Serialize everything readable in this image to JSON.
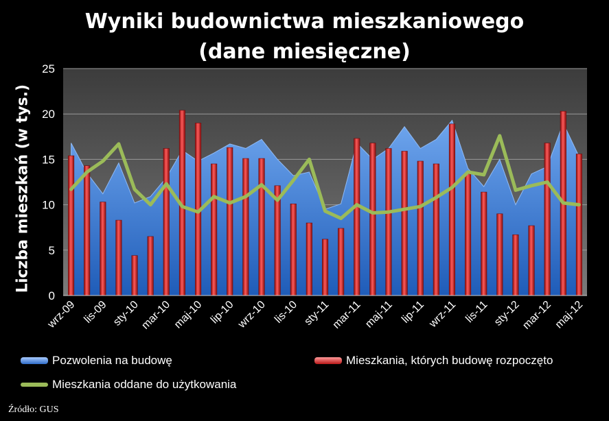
{
  "chart_data": {
    "type": "bar",
    "title_line1": "Wyniki budownictwa mieszkaniowego",
    "title_line2": "(dane miesięczne)",
    "ylabel": "Liczba mieszkań (w tys.)",
    "xlabel": "",
    "ylim": [
      0,
      25
    ],
    "yticks": [
      0,
      5,
      10,
      15,
      20,
      25
    ],
    "grid": true,
    "legend_position": "bottom",
    "categories": [
      "wrz-09",
      "paź-09",
      "lis-09",
      "gru-09",
      "sty-10",
      "lut-10",
      "mar-10",
      "kwi-10",
      "maj-10",
      "cze-10",
      "lip-10",
      "sie-10",
      "wrz-10",
      "paź-10",
      "lis-10",
      "gru-10",
      "sty-11",
      "lut-11",
      "mar-11",
      "kwi-11",
      "maj-11",
      "cze-11",
      "lip-11",
      "sie-11",
      "wrz-11",
      "paź-11",
      "lis-11",
      "gru-11",
      "sty-12",
      "lut-12",
      "mar-12",
      "kwi-12",
      "maj-12"
    ],
    "tick_labels": [
      "wrz-09",
      "lis-09",
      "sty-10",
      "mar-10",
      "maj-10",
      "lip-10",
      "wrz-10",
      "lis-10",
      "sty-11",
      "mar-11",
      "maj-11",
      "lip-11",
      "wrz-11",
      "lis-11",
      "sty-12",
      "mar-12",
      "maj-12"
    ],
    "series": [
      {
        "name": "Pozwolenia na budowę",
        "kind": "area",
        "color": "#4a86d8",
        "values": [
          16.8,
          13.5,
          11.2,
          14.6,
          10.2,
          10.9,
          13.0,
          16.0,
          14.8,
          15.7,
          16.7,
          16.2,
          17.2,
          15.0,
          13.2,
          13.6,
          9.5,
          10.1,
          16.8,
          15.0,
          16.2,
          18.6,
          16.2,
          17.2,
          19.3,
          14.0,
          12.0,
          15.0,
          10.0,
          13.4,
          14.2,
          19.0,
          15.3
        ]
      },
      {
        "name": "Mieszkania, których budowę rozpoczęto",
        "kind": "bar",
        "color": "#d42626",
        "values": [
          15.4,
          14.3,
          10.3,
          8.3,
          4.4,
          6.5,
          16.2,
          20.4,
          19.0,
          14.5,
          16.3,
          15.1,
          15.1,
          12.1,
          10.1,
          8.0,
          6.2,
          7.4,
          17.3,
          16.8,
          16.2,
          15.9,
          14.8,
          14.5,
          18.9,
          13.4,
          11.4,
          9.0,
          6.7,
          7.7,
          16.8,
          20.3,
          15.6
        ]
      },
      {
        "name": "Mieszkania oddane do użytkowania",
        "kind": "line",
        "color": "#9bbb59",
        "values": [
          11.7,
          13.6,
          14.8,
          16.7,
          11.7,
          10.0,
          12.3,
          9.8,
          9.2,
          10.9,
          10.2,
          10.9,
          12.2,
          10.5,
          12.7,
          15.0,
          9.3,
          8.5,
          10.0,
          9.1,
          9.2,
          9.5,
          9.8,
          10.8,
          11.9,
          13.6,
          13.3,
          17.6,
          11.6,
          12.1,
          12.5,
          10.2,
          10.0
        ]
      }
    ]
  },
  "source": "Źródło: GUS"
}
